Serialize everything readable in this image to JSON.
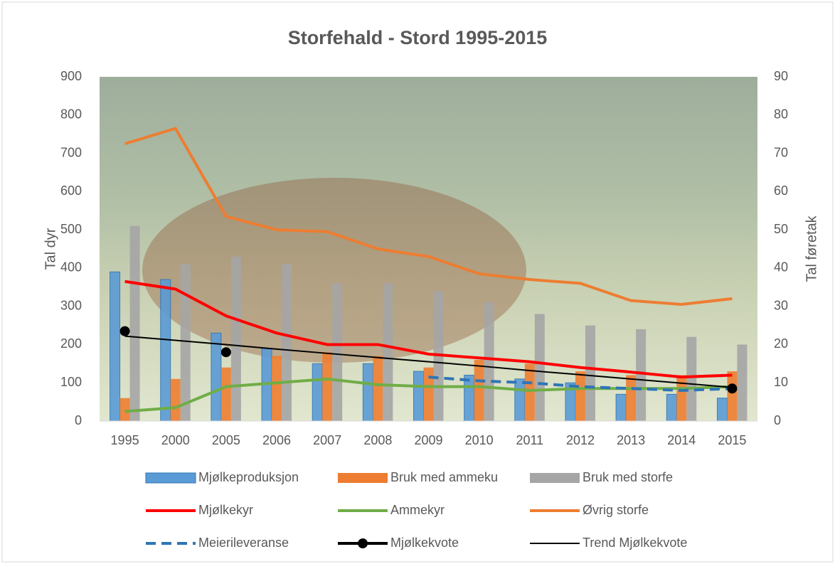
{
  "chart_data": {
    "type": "bar",
    "title": "Storfehald - Stord 1995-2015",
    "y_label": "Tal dyr",
    "y2_label": "Tal føretak",
    "categories": [
      "1995",
      "2000",
      "2005",
      "2006",
      "2007",
      "2008",
      "2009",
      "2010",
      "2011",
      "2012",
      "2013",
      "2014",
      "2015"
    ],
    "ylim": [
      0,
      900
    ],
    "yticks": [
      0,
      100,
      200,
      300,
      400,
      500,
      600,
      700,
      800,
      900
    ],
    "y2lim": [
      0,
      90
    ],
    "y2ticks": [
      0,
      10,
      20,
      30,
      40,
      50,
      60,
      70,
      80,
      90
    ],
    "series": [
      {
        "name": "Mjølkeproduksjon",
        "type": "bar",
        "axis": "y2",
        "color": "#5b9bd5",
        "values": [
          39,
          37,
          23,
          19,
          15,
          15,
          13,
          12,
          11,
          10,
          7,
          7,
          6
        ]
      },
      {
        "name": "Bruk med ammeku",
        "type": "bar",
        "axis": "y2",
        "color": "#ed7d31",
        "values": [
          6,
          11,
          14,
          17,
          18,
          17,
          14,
          16,
          15,
          13,
          12,
          12,
          13
        ]
      },
      {
        "name": "Bruk med storfe",
        "type": "bar",
        "axis": "y2",
        "color": "#a5a5a5",
        "values": [
          51,
          41,
          43,
          41,
          36,
          36,
          34,
          31,
          28,
          25,
          24,
          22,
          20
        ]
      },
      {
        "name": "Mjølkekyr",
        "type": "line",
        "color": "#ff0000",
        "values": [
          365,
          345,
          275,
          230,
          200,
          200,
          175,
          165,
          155,
          140,
          128,
          115,
          120
        ]
      },
      {
        "name": "Ammekyr",
        "type": "line",
        "color": "#70ad47",
        "values": [
          25,
          35,
          90,
          100,
          110,
          95,
          90,
          90,
          80,
          85,
          85,
          85,
          90
        ]
      },
      {
        "name": "Øvrig storfe",
        "type": "line",
        "color": "#ed7d31",
        "values": [
          725,
          765,
          535,
          500,
          495,
          450,
          430,
          385,
          370,
          360,
          315,
          305,
          320
        ]
      },
      {
        "name": "Meierileveranse",
        "type": "line",
        "dash": true,
        "color": "#2e75b6",
        "values": [
          null,
          null,
          null,
          null,
          null,
          null,
          115,
          105,
          100,
          90,
          85,
          80,
          85
        ]
      },
      {
        "name": "Mjølkekvote",
        "type": "line",
        "marker": true,
        "color": "#000000",
        "values": [
          235,
          null,
          180,
          null,
          null,
          null,
          null,
          null,
          null,
          null,
          null,
          null,
          85
        ]
      },
      {
        "name": "Trend Mjølkekvote",
        "type": "line",
        "thin": true,
        "color": "#000000",
        "values": [
          222,
          211,
          200,
          188,
          177,
          166,
          155,
          144,
          132,
          121,
          110,
          99,
          88
        ]
      }
    ]
  }
}
